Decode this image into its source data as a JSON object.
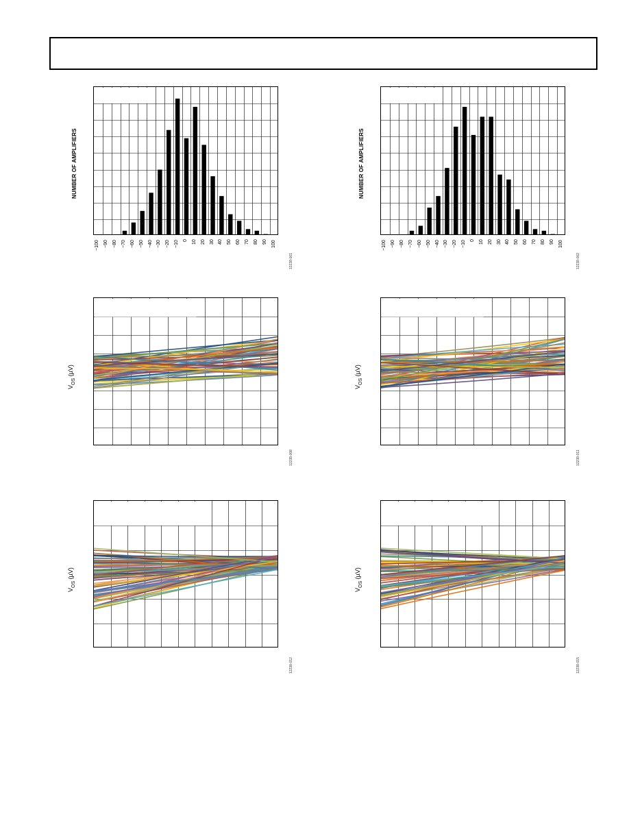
{
  "header": {
    "text": ""
  },
  "charts": [
    {
      "id": "hist-left",
      "figure_id": "12238-001",
      "ylabel": "NUMBER OF AMPLIFIERS",
      "chart_data": {
        "type": "bar",
        "categories": [
          "−100",
          "−90",
          "−80",
          "−70",
          "−60",
          "−50",
          "−40",
          "−30",
          "−20",
          "−10",
          "0",
          "10",
          "20",
          "30",
          "40",
          "50",
          "60",
          "70",
          "80",
          "90",
          "100"
        ],
        "values": [
          0,
          0,
          0,
          3,
          8,
          15,
          26,
          40,
          64,
          83,
          59,
          78,
          55,
          36,
          24,
          13,
          9,
          4,
          3,
          1,
          0
        ],
        "ylim": [
          0,
          90
        ],
        "grid": true,
        "xlabel": "",
        "title": ""
      }
    },
    {
      "id": "hist-right",
      "figure_id": "12238-002",
      "ylabel": "NUMBER OF AMPLIFIERS",
      "chart_data": {
        "type": "bar",
        "categories": [
          "−100",
          "−90",
          "−80",
          "−70",
          "−60",
          "−50",
          "−40",
          "−30",
          "−20",
          "−10",
          "0",
          "10",
          "20",
          "30",
          "40",
          "50",
          "60",
          "70",
          "80",
          "90",
          "100"
        ],
        "values": [
          0,
          0,
          0,
          3,
          6,
          17,
          24,
          41,
          66,
          78,
          61,
          72,
          72,
          37,
          34,
          16,
          9,
          4,
          3,
          1,
          0
        ],
        "ylim": [
          0,
          90
        ],
        "grid": true,
        "xlabel": "",
        "title": ""
      }
    },
    {
      "id": "drift-left-1",
      "figure_id": "12238-008",
      "ylabel_main": "V",
      "ylabel_sub": "OS",
      "ylabel_unit": " (µV)",
      "chart_data": {
        "type": "line",
        "x_range": [
          0,
          1
        ],
        "y_range": [
          0,
          1
        ],
        "grid": true,
        "pattern": "fan-up",
        "series_count": 60,
        "colors": [
          "#4f81bd",
          "#c0504d",
          "#9bbb59",
          "#8064a2",
          "#4bacc6",
          "#f79646",
          "#1f497d",
          "#76923c",
          "#948a54",
          "#e36c09",
          "#31859b",
          "#7f7f7f",
          "#ffc000",
          "#5f497a",
          "#953734"
        ]
      }
    },
    {
      "id": "drift-right-1",
      "figure_id": "12238-011",
      "ylabel_main": "V",
      "ylabel_sub": "OS",
      "ylabel_unit": " (µV)",
      "chart_data": {
        "type": "line",
        "x_range": [
          0,
          1
        ],
        "y_range": [
          0,
          1
        ],
        "grid": true,
        "pattern": "fan-up",
        "series_count": 60,
        "colors": [
          "#4f81bd",
          "#c0504d",
          "#9bbb59",
          "#8064a2",
          "#4bacc6",
          "#f79646",
          "#1f497d",
          "#76923c",
          "#948a54",
          "#e36c09",
          "#31859b",
          "#7f7f7f",
          "#ffc000",
          "#5f497a",
          "#953734"
        ]
      }
    },
    {
      "id": "drift-left-2",
      "figure_id": "12238-012",
      "ylabel_main": "V",
      "ylabel_sub": "OS",
      "ylabel_unit": " (µV)",
      "chart_data": {
        "type": "line",
        "x_range": [
          0,
          1
        ],
        "y_range": [
          0,
          1
        ],
        "grid": true,
        "pattern": "converge",
        "series_count": 80,
        "colors": [
          "#4f81bd",
          "#c0504d",
          "#9bbb59",
          "#8064a2",
          "#4bacc6",
          "#f79646",
          "#1f497d",
          "#76923c",
          "#948a54",
          "#e36c09",
          "#31859b",
          "#7f7f7f",
          "#ffc000",
          "#5f497a",
          "#953734"
        ]
      }
    },
    {
      "id": "drift-right-2",
      "figure_id": "12238-015",
      "ylabel_main": "V",
      "ylabel_sub": "OS",
      "ylabel_unit": " (µV)",
      "chart_data": {
        "type": "line",
        "x_range": [
          0,
          1
        ],
        "y_range": [
          0,
          1
        ],
        "grid": true,
        "pattern": "converge",
        "series_count": 80,
        "colors": [
          "#4f81bd",
          "#c0504d",
          "#9bbb59",
          "#8064a2",
          "#4bacc6",
          "#f79646",
          "#1f497d",
          "#76923c",
          "#948a54",
          "#e36c09",
          "#31859b",
          "#7f7f7f",
          "#ffc000",
          "#5f497a",
          "#953734"
        ]
      }
    }
  ]
}
